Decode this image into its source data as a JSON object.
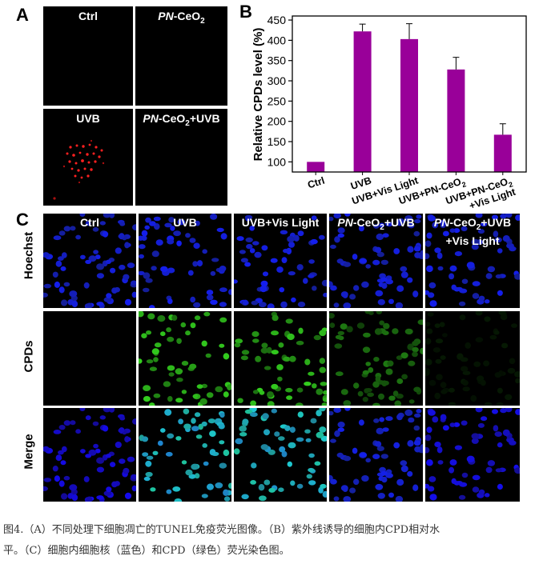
{
  "panel_labels": {
    "a": "A",
    "b": "B",
    "c": "C"
  },
  "panel_a": {
    "titles": {
      "ctrl": "Ctrl",
      "pn_prefix": "PN",
      "pn_main": "-CeO",
      "pn_sub": "2",
      "uvb": "UVB",
      "pnuvb_prefix": "PN",
      "pnuvb_main": "-CeO",
      "pnuvb_sub": "2",
      "pnuvb_suffix": "+UVB"
    }
  },
  "chart_data": {
    "type": "bar",
    "categories": [
      "Ctrl",
      "UVB",
      "UVB+Vis Light",
      "UVB+PN-CeO2",
      "UVB+PN-CeO2 +Vis Light"
    ],
    "tick_labels": [
      {
        "lines": [
          "Ctrl"
        ]
      },
      {
        "lines": [
          "UVB"
        ]
      },
      {
        "lines": [
          "UVB+Vis Light"
        ]
      },
      {
        "lines": [
          "UVB+PN-CeO",
          "2"
        ]
      },
      {
        "lines": [
          "UVB+PN-CeO",
          "2",
          "+Vis Light"
        ]
      }
    ],
    "values": [
      100,
      422,
      403,
      328,
      167
    ],
    "errors": [
      0,
      18,
      38,
      30,
      27
    ],
    "ylabel": "Relative CPDs level (%)",
    "ylim": [
      75,
      460
    ],
    "yticks": [
      100,
      150,
      200,
      250,
      300,
      350,
      400,
      450
    ],
    "bar_color": "#990099"
  },
  "panel_c": {
    "columns": {
      "ctrl": "Ctrl",
      "uvb": "UVB",
      "uvbvis": "UVB+Vis Light",
      "pnuvb_prefix": "PN",
      "pnuvb_main": "-CeO",
      "pnuvb_sub": "2",
      "pnuvb_suffix": "+UVB",
      "pnvis_prefix": "PN",
      "pnvis_main": "-CeO",
      "pnvis_sub": "2",
      "pnvis_suffix": "+UVB",
      "pnvis_line2": "+Vis Light"
    },
    "rows": {
      "hoechst": "Hoechst",
      "cpds": "CPDs",
      "merge": "Merge"
    }
  },
  "caption": {
    "line1": "图4.（A）不同处理下细胞凋亡的TUNEL免疫荧光图像。（B）紫外线诱导的细胞内CPD相对水",
    "line2": "平。（C）细胞内细胞核（蓝色）和CPD（绿色）荧光染色图。"
  }
}
